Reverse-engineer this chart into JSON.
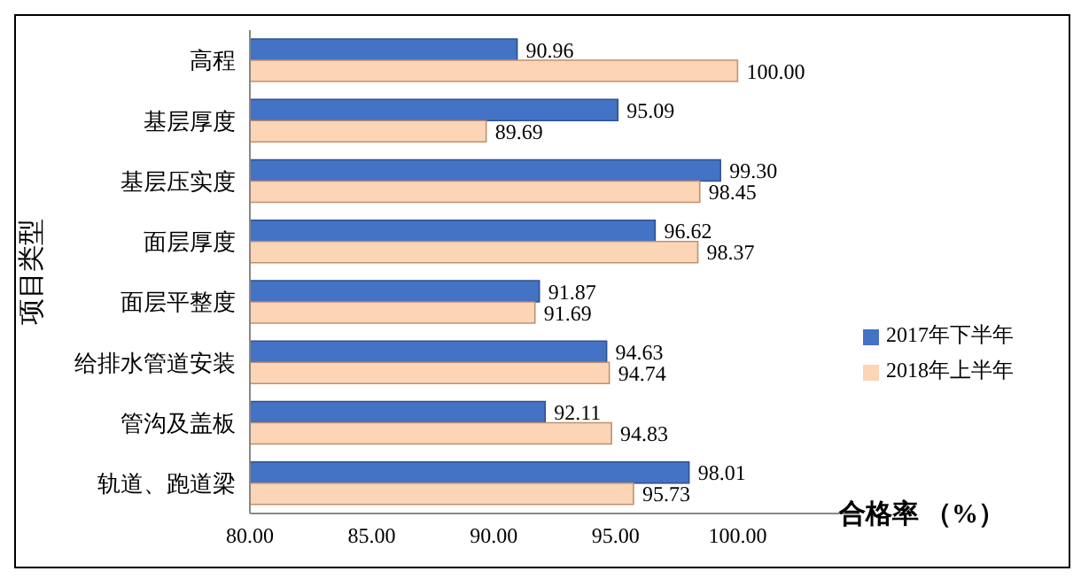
{
  "chart_data": {
    "type": "bar",
    "orientation": "horizontal",
    "xlabel": "合格率 （%）",
    "ylabel": "项目类型",
    "categories": [
      "高程",
      "基层厚度",
      "基层压实度",
      "面层厚度",
      "面层平整度",
      "给排水管道安装",
      "管沟及盖板",
      "轨道、跑道梁"
    ],
    "series": [
      {
        "name": "2017年下半年",
        "color": "#4472c4",
        "values": [
          90.96,
          95.09,
          99.3,
          96.62,
          91.87,
          94.63,
          92.11,
          98.01
        ],
        "value_labels": [
          "90.96",
          "95.09",
          "99.30",
          "96.62",
          "91.87",
          "94.63",
          "92.11",
          "98.01"
        ]
      },
      {
        "name": "2018年上半年",
        "color": "#fbd5b5",
        "values": [
          100.0,
          89.69,
          98.45,
          98.37,
          91.69,
          94.74,
          94.83,
          95.73
        ],
        "value_labels": [
          "100.00",
          "89.69",
          "98.45",
          "98.37",
          "91.69",
          "94.74",
          "94.83",
          "95.73"
        ]
      }
    ],
    "xlim": [
      80,
      105
    ],
    "xticks": [
      {
        "value": 80,
        "label": "80.00"
      },
      {
        "value": 85,
        "label": "85.00"
      },
      {
        "value": 90,
        "label": "90.00"
      },
      {
        "value": 95,
        "label": "95.00"
      },
      {
        "value": 100,
        "label": "100.00"
      }
    ],
    "legend": "right"
  }
}
